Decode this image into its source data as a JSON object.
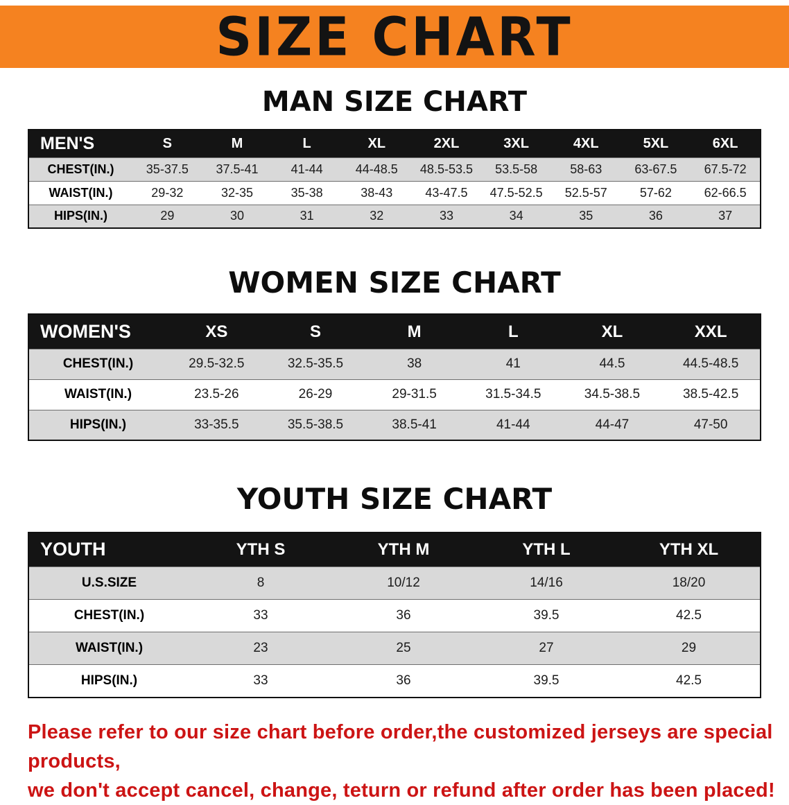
{
  "banner": {
    "title": "SIZE CHART",
    "bg_color": "#f58220",
    "text_color": "#131313"
  },
  "theme": {
    "table_header_bg": "#141414",
    "row_stripe_gray": "#d9d9d9",
    "disclaimer_red": "#cc1414"
  },
  "sections": [
    {
      "id": "men",
      "heading": "MAN SIZE CHART",
      "table": {
        "header": [
          "MEN'S",
          "S",
          "M",
          "L",
          "XL",
          "2XL",
          "3XL",
          "4XL",
          "5XL",
          "6XL"
        ],
        "rows": [
          [
            "CHEST(IN.)",
            "35-37.5",
            "37.5-41",
            "41-44",
            "44-48.5",
            "48.5-53.5",
            "53.5-58",
            "58-63",
            "63-67.5",
            "67.5-72"
          ],
          [
            "WAIST(IN.)",
            "29-32",
            "32-35",
            "35-38",
            "38-43",
            "43-47.5",
            "47.5-52.5",
            "52.5-57",
            "57-62",
            "62-66.5"
          ],
          [
            "HIPS(IN.)",
            "29",
            "30",
            "31",
            "32",
            "33",
            "34",
            "35",
            "36",
            "37"
          ]
        ]
      }
    },
    {
      "id": "women",
      "heading": "WOMEN SIZE CHART",
      "table": {
        "header": [
          "WOMEN'S",
          "XS",
          "S",
          "M",
          "L",
          "XL",
          "XXL"
        ],
        "rows": [
          [
            "CHEST(IN.)",
            "29.5-32.5",
            "32.5-35.5",
            "38",
            "41",
            "44.5",
            "44.5-48.5"
          ],
          [
            "WAIST(IN.)",
            "23.5-26",
            "26-29",
            "29-31.5",
            "31.5-34.5",
            "34.5-38.5",
            "38.5-42.5"
          ],
          [
            "HIPS(IN.)",
            "33-35.5",
            "35.5-38.5",
            "38.5-41",
            "41-44",
            "44-47",
            "47-50"
          ]
        ]
      }
    },
    {
      "id": "youth",
      "heading": "YOUTH SIZE CHART",
      "table": {
        "header": [
          "YOUTH",
          "YTH S",
          "YTH M",
          "YTH L",
          "YTH XL"
        ],
        "rows": [
          [
            "U.S.SIZE",
            "8",
            "10/12",
            "14/16",
            "18/20"
          ],
          [
            "CHEST(IN.)",
            "33",
            "36",
            "39.5",
            "42.5"
          ],
          [
            "WAIST(IN.)",
            "23",
            "25",
            "27",
            "29"
          ],
          [
            "HIPS(IN.)",
            "33",
            "36",
            "39.5",
            "42.5"
          ]
        ]
      }
    }
  ],
  "disclaimer": {
    "line1": "Please refer to our size chart before order,the customized jerseys are special products,",
    "line2": "we don't accept cancel, change, teturn or refund after order has been placed!"
  }
}
